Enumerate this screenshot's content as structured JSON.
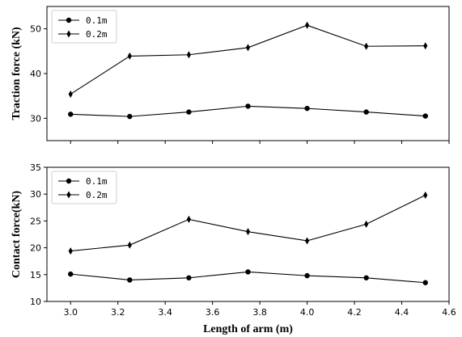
{
  "chart_data": [
    {
      "type": "line",
      "title": "",
      "xlabel": "",
      "ylabel": "Traction force (kN)",
      "xlim": [
        2.9,
        4.6
      ],
      "ylim": [
        25,
        55
      ],
      "yticks": [
        30,
        40,
        50
      ],
      "xticks": [
        3.0,
        3.2,
        3.4,
        3.6,
        3.8,
        4.0,
        4.2,
        4.4,
        4.6
      ],
      "show_xtick_labels": false,
      "grid": false,
      "legend": "top-left",
      "x": [
        3.0,
        3.25,
        3.5,
        3.75,
        4.0,
        4.25,
        4.5
      ],
      "series": [
        {
          "name": "0.1m",
          "marker": "circle",
          "values": [
            30.9,
            30.4,
            31.4,
            32.7,
            32.2,
            31.4,
            30.5
          ]
        },
        {
          "name": "0.2m",
          "marker": "diamond",
          "values": [
            35.4,
            43.9,
            44.2,
            45.8,
            50.8,
            46.1,
            46.2
          ]
        }
      ]
    },
    {
      "type": "line",
      "title": "",
      "xlabel": "Length of arm (m)",
      "ylabel": "Contact force(kN)",
      "xlim": [
        2.9,
        4.6
      ],
      "ylim": [
        10,
        35
      ],
      "yticks": [
        10,
        15,
        20,
        25,
        30,
        35
      ],
      "xticks": [
        3.0,
        3.2,
        3.4,
        3.6,
        3.8,
        4.0,
        4.2,
        4.4,
        4.6
      ],
      "show_xtick_labels": true,
      "grid": false,
      "legend": "top-left",
      "x": [
        3.0,
        3.25,
        3.5,
        3.75,
        4.0,
        4.25,
        4.5
      ],
      "series": [
        {
          "name": "0.1m",
          "marker": "circle",
          "values": [
            15.1,
            14.0,
            14.4,
            15.5,
            14.8,
            14.4,
            13.5
          ]
        },
        {
          "name": "0.2m",
          "marker": "diamond",
          "values": [
            19.4,
            20.5,
            25.3,
            23.0,
            21.3,
            24.4,
            29.8
          ]
        }
      ]
    }
  ]
}
